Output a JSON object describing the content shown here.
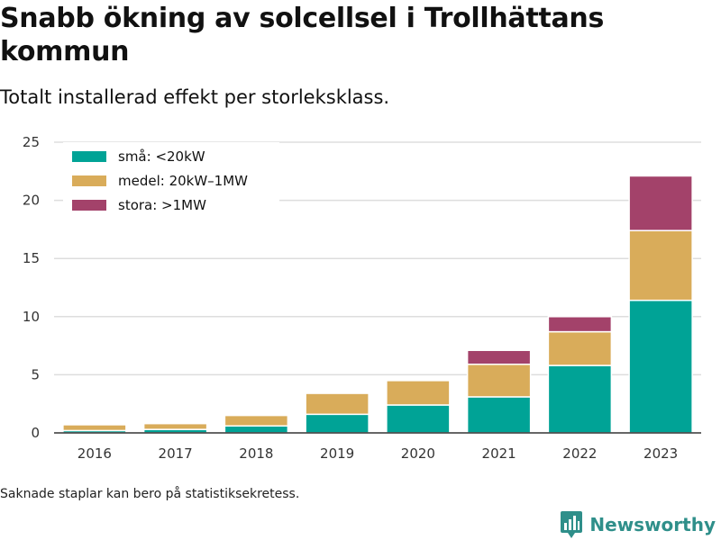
{
  "header": {
    "title": "Snabb ökning av solcellsel i Trollhättans kommun",
    "subtitle": "Totalt installerad effekt per storleksklass."
  },
  "footer": {
    "note": "Saknade staplar kan bero på statistiksekretess.",
    "brand": "Newsworthy",
    "brand_icon": "bar-chart-logo-icon"
  },
  "colors": {
    "small": "#00a396",
    "medium": "#d9ac5a",
    "large": "#a3426a",
    "grid": "#dddddd",
    "axis": "#333333",
    "brand": "#2f8f8a"
  },
  "chart_data": {
    "type": "bar",
    "stacked": true,
    "categories": [
      "2016",
      "2017",
      "2018",
      "2019",
      "2020",
      "2021",
      "2022",
      "2023"
    ],
    "series": [
      {
        "name": "små: <20kW",
        "values": [
          0.2,
          0.3,
          0.6,
          1.6,
          2.4,
          3.1,
          5.8,
          11.4
        ]
      },
      {
        "name": "medel: 20kW–1MW",
        "values": [
          0.5,
          0.5,
          0.9,
          1.8,
          2.1,
          2.8,
          2.9,
          6.0
        ]
      },
      {
        "name": "stora: >1MW",
        "values": [
          0,
          0,
          0,
          0,
          0,
          1.2,
          1.3,
          4.7
        ]
      }
    ],
    "ylim": [
      0,
      25
    ],
    "yticks": [
      "0",
      "5",
      "10",
      "15",
      "20",
      "25"
    ],
    "grid": true,
    "legend_position": "top-left"
  }
}
